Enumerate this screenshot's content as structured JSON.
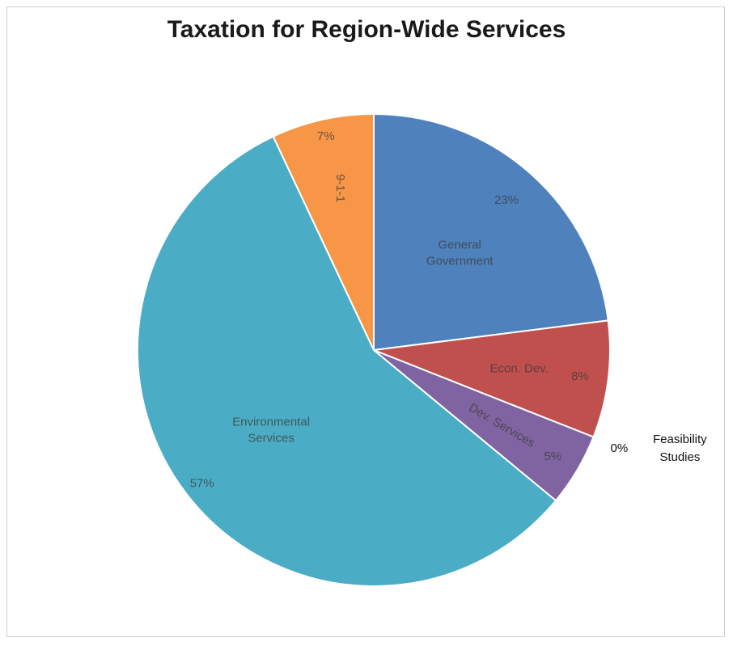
{
  "chart_data": {
    "type": "pie",
    "title": "Taxation for Region-Wide Services",
    "slices": [
      {
        "label": "General Government",
        "value": 23,
        "percent_label": "23%",
        "color": "#4f81bd"
      },
      {
        "label": "Econ. Dev.",
        "value": 8,
        "percent_label": "8%",
        "color": "#c0504d"
      },
      {
        "label": "Feasibility Studies",
        "value": 0,
        "percent_label": "0%",
        "color": "#9bbb59"
      },
      {
        "label": "Dev. Services",
        "value": 5,
        "percent_label": "5%",
        "color": "#8064a2"
      },
      {
        "label": "Environmental Services",
        "value": 57,
        "percent_label": "57%",
        "color": "#4bacc6"
      },
      {
        "label": "9-1-1",
        "value": 7,
        "percent_label": "7%",
        "color": "#f79646"
      }
    ]
  }
}
